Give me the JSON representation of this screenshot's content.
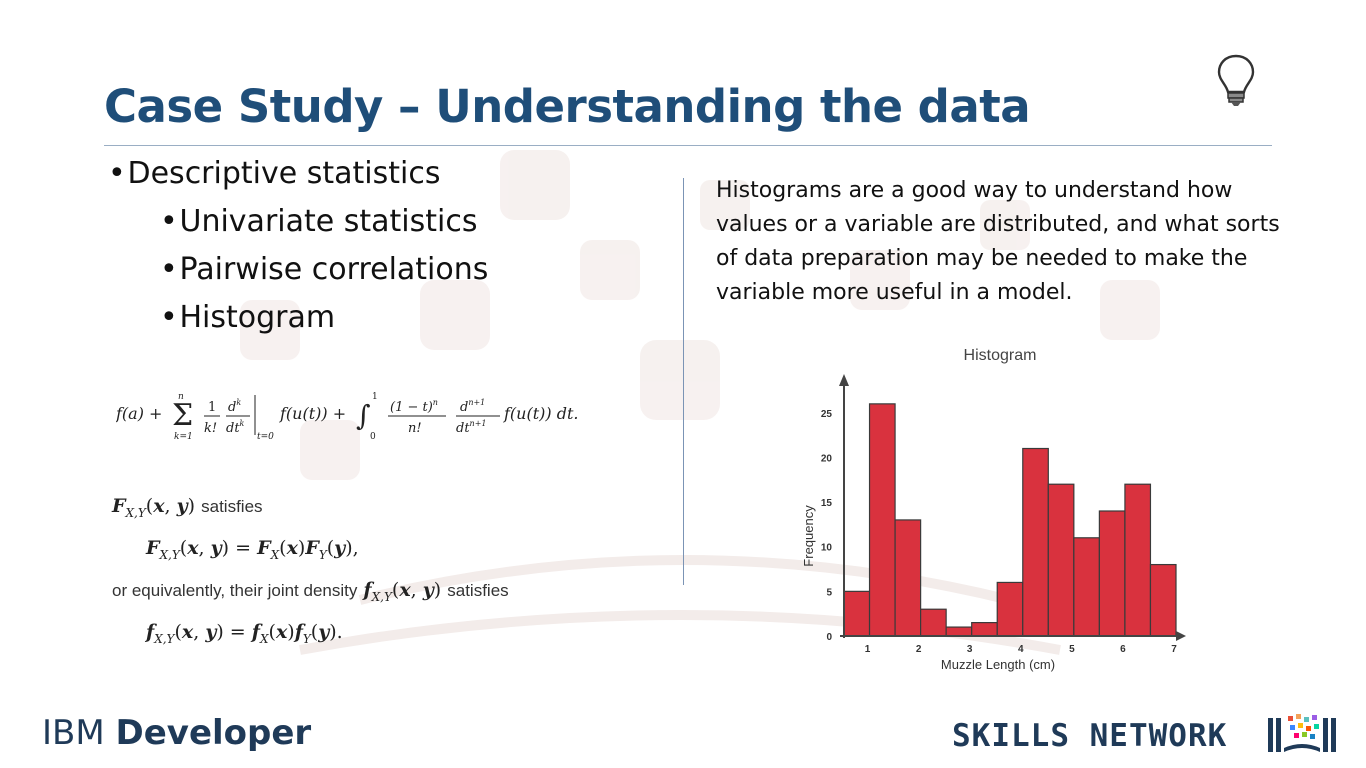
{
  "slide": {
    "title": "Case Study – Understanding the data",
    "bullets": [
      {
        "text": "Descriptive statistics",
        "level": 1
      },
      {
        "text": "Univariate statistics",
        "level": 2
      },
      {
        "text": "Pairwise correlations",
        "level": 2
      },
      {
        "text": "Histogram",
        "level": 2
      }
    ],
    "description": "Histograms are a good way to understand how values or a variable are distributed, and what sorts of data preparation may be needed to make the variable more useful in a model.",
    "formulas": {
      "line1_prose": "satisfies",
      "line3_prose": "or equivalently, their joint density",
      "line3_prose_end": "satisfies"
    }
  },
  "chart_data": {
    "type": "bar",
    "title": "Histogram",
    "xlabel": "Muzzle Length (cm)",
    "ylabel": "Frequency",
    "x_ticks": [
      "1",
      "2",
      "3",
      "4",
      "5",
      "6",
      "7"
    ],
    "y_ticks": [
      "0",
      "5",
      "10",
      "15",
      "20",
      "25"
    ],
    "xlim": [
      0.5,
      7
    ],
    "ylim": [
      0,
      28
    ],
    "bin_width": 0.5,
    "bin_starts": [
      0.5,
      1.0,
      1.5,
      2.0,
      2.5,
      3.0,
      3.5,
      4.0,
      4.5,
      5.0,
      5.5,
      6.0,
      6.5
    ],
    "values": [
      5,
      26,
      13,
      3,
      1,
      1.5,
      6,
      21,
      17,
      11,
      14,
      17,
      8
    ],
    "bar_color": "#d9323e",
    "grid": false
  },
  "footer": {
    "left_light": "IBM ",
    "left_bold": "Developer",
    "right": "SKILLS NETWORK"
  },
  "colors": {
    "title": "#1f4e79",
    "divider": "#7b94b5",
    "footer": "#1f3a58"
  },
  "icons": {
    "lightbulb": "lightbulb-icon",
    "skills_network_logo": "skills-network-logo"
  }
}
